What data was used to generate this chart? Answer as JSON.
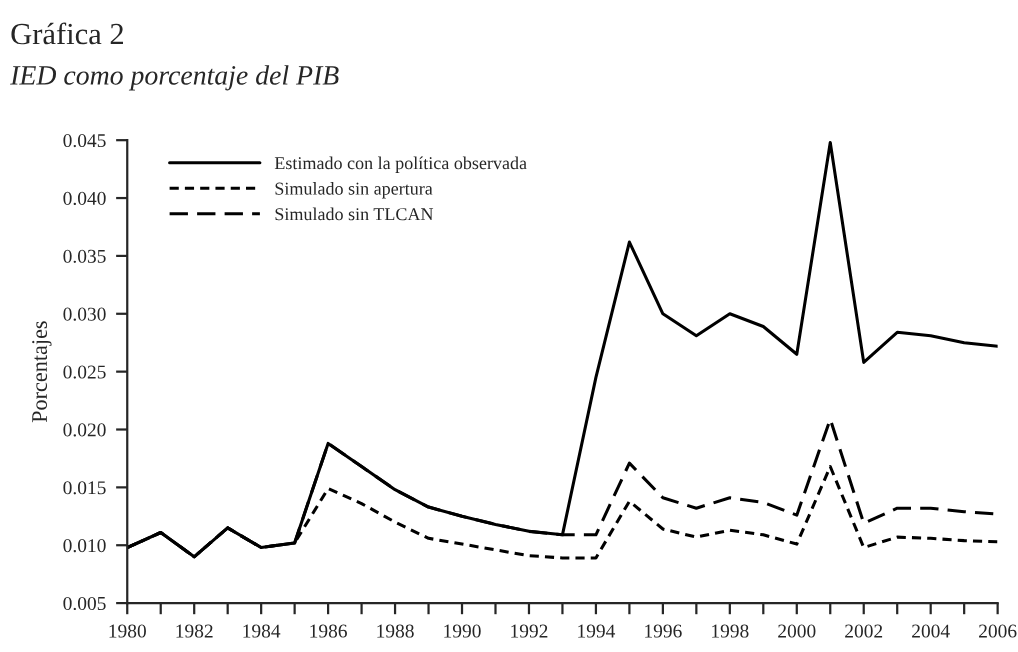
{
  "chart_data": {
    "type": "line",
    "title": "Gráfica 2",
    "subtitle": "IED como porcentaje del PIB",
    "ylabel": "Porcentajes",
    "x": [
      1980,
      1981,
      1982,
      1983,
      1984,
      1985,
      1986,
      1987,
      1988,
      1989,
      1990,
      1991,
      1992,
      1993,
      1994,
      1995,
      1996,
      1997,
      1998,
      1999,
      2000,
      2001,
      2002,
      2003,
      2004,
      2005,
      2006
    ],
    "series": [
      {
        "name": "Estimado con la política observada",
        "color": "#000000",
        "line_style": "solid",
        "values": [
          0.0098,
          0.0111,
          0.009,
          0.0115,
          0.0098,
          0.0102,
          0.0188,
          0.0168,
          0.0148,
          0.0133,
          0.0125,
          0.0118,
          0.0112,
          0.0109,
          0.0245,
          0.0362,
          0.03,
          0.0281,
          0.03,
          0.0289,
          0.0265,
          0.0448,
          0.0258,
          0.0284,
          0.0281,
          0.0275,
          0.0272
        ]
      },
      {
        "name": "Simulado sin apertura",
        "color": "#000000",
        "line_style": "dotted",
        "values": [
          0.0098,
          0.0111,
          0.009,
          0.0115,
          0.0098,
          0.0102,
          0.0149,
          0.0136,
          0.012,
          0.0106,
          0.0101,
          0.0096,
          0.0091,
          0.0089,
          0.0089,
          0.0138,
          0.0114,
          0.0107,
          0.0113,
          0.0109,
          0.0101,
          0.0168,
          0.0098,
          0.0107,
          0.0106,
          0.0104,
          0.0103
        ]
      },
      {
        "name": "Simulado sin TLCAN",
        "color": "#000000",
        "line_style": "dashed",
        "values": [
          0.0098,
          0.0111,
          0.009,
          0.0115,
          0.0098,
          0.0102,
          0.0188,
          0.0168,
          0.0148,
          0.0133,
          0.0125,
          0.0118,
          0.0112,
          0.0109,
          0.0109,
          0.0171,
          0.0141,
          0.0132,
          0.0141,
          0.0137,
          0.0126,
          0.0209,
          0.0119,
          0.0132,
          0.0132,
          0.0129,
          0.0127
        ]
      }
    ],
    "xlim": [
      1980,
      2006
    ],
    "xticks": [
      1980,
      {
        "value": 1981,
        "label": null
      },
      1982,
      {
        "value": 1983,
        "label": null
      },
      1984,
      {
        "value": 1985,
        "label": null
      },
      1986,
      {
        "value": 1987,
        "label": null
      },
      1988,
      {
        "value": 1989,
        "label": null
      },
      1990,
      {
        "value": 1991,
        "label": null
      },
      1992,
      {
        "value": 1993,
        "label": null
      },
      1994,
      {
        "value": 1995,
        "label": null
      },
      1996,
      {
        "value": 1997,
        "label": null
      },
      1998,
      {
        "value": 1999,
        "label": null
      },
      2000,
      {
        "value": 2001,
        "label": null
      },
      2002,
      {
        "value": 2003,
        "label": null
      },
      2004,
      {
        "value": 2005,
        "label": null
      },
      2006
    ],
    "ylim": [
      0.005,
      0.045
    ],
    "yticks": [
      {
        "value": 0.005,
        "label": "0.005"
      },
      {
        "value": 0.01,
        "label": "0.010"
      },
      {
        "value": 0.015,
        "label": "0.015"
      },
      {
        "value": 0.02,
        "label": "0.020"
      },
      {
        "value": 0.025,
        "label": "0.025"
      },
      {
        "value": 0.03,
        "label": "0.030"
      },
      {
        "value": 0.035,
        "label": "0.035"
      },
      {
        "value": 0.04,
        "label": "0.040"
      },
      {
        "value": 0.045,
        "label": "0.045"
      }
    ],
    "grid": false,
    "legend": "top left"
  }
}
